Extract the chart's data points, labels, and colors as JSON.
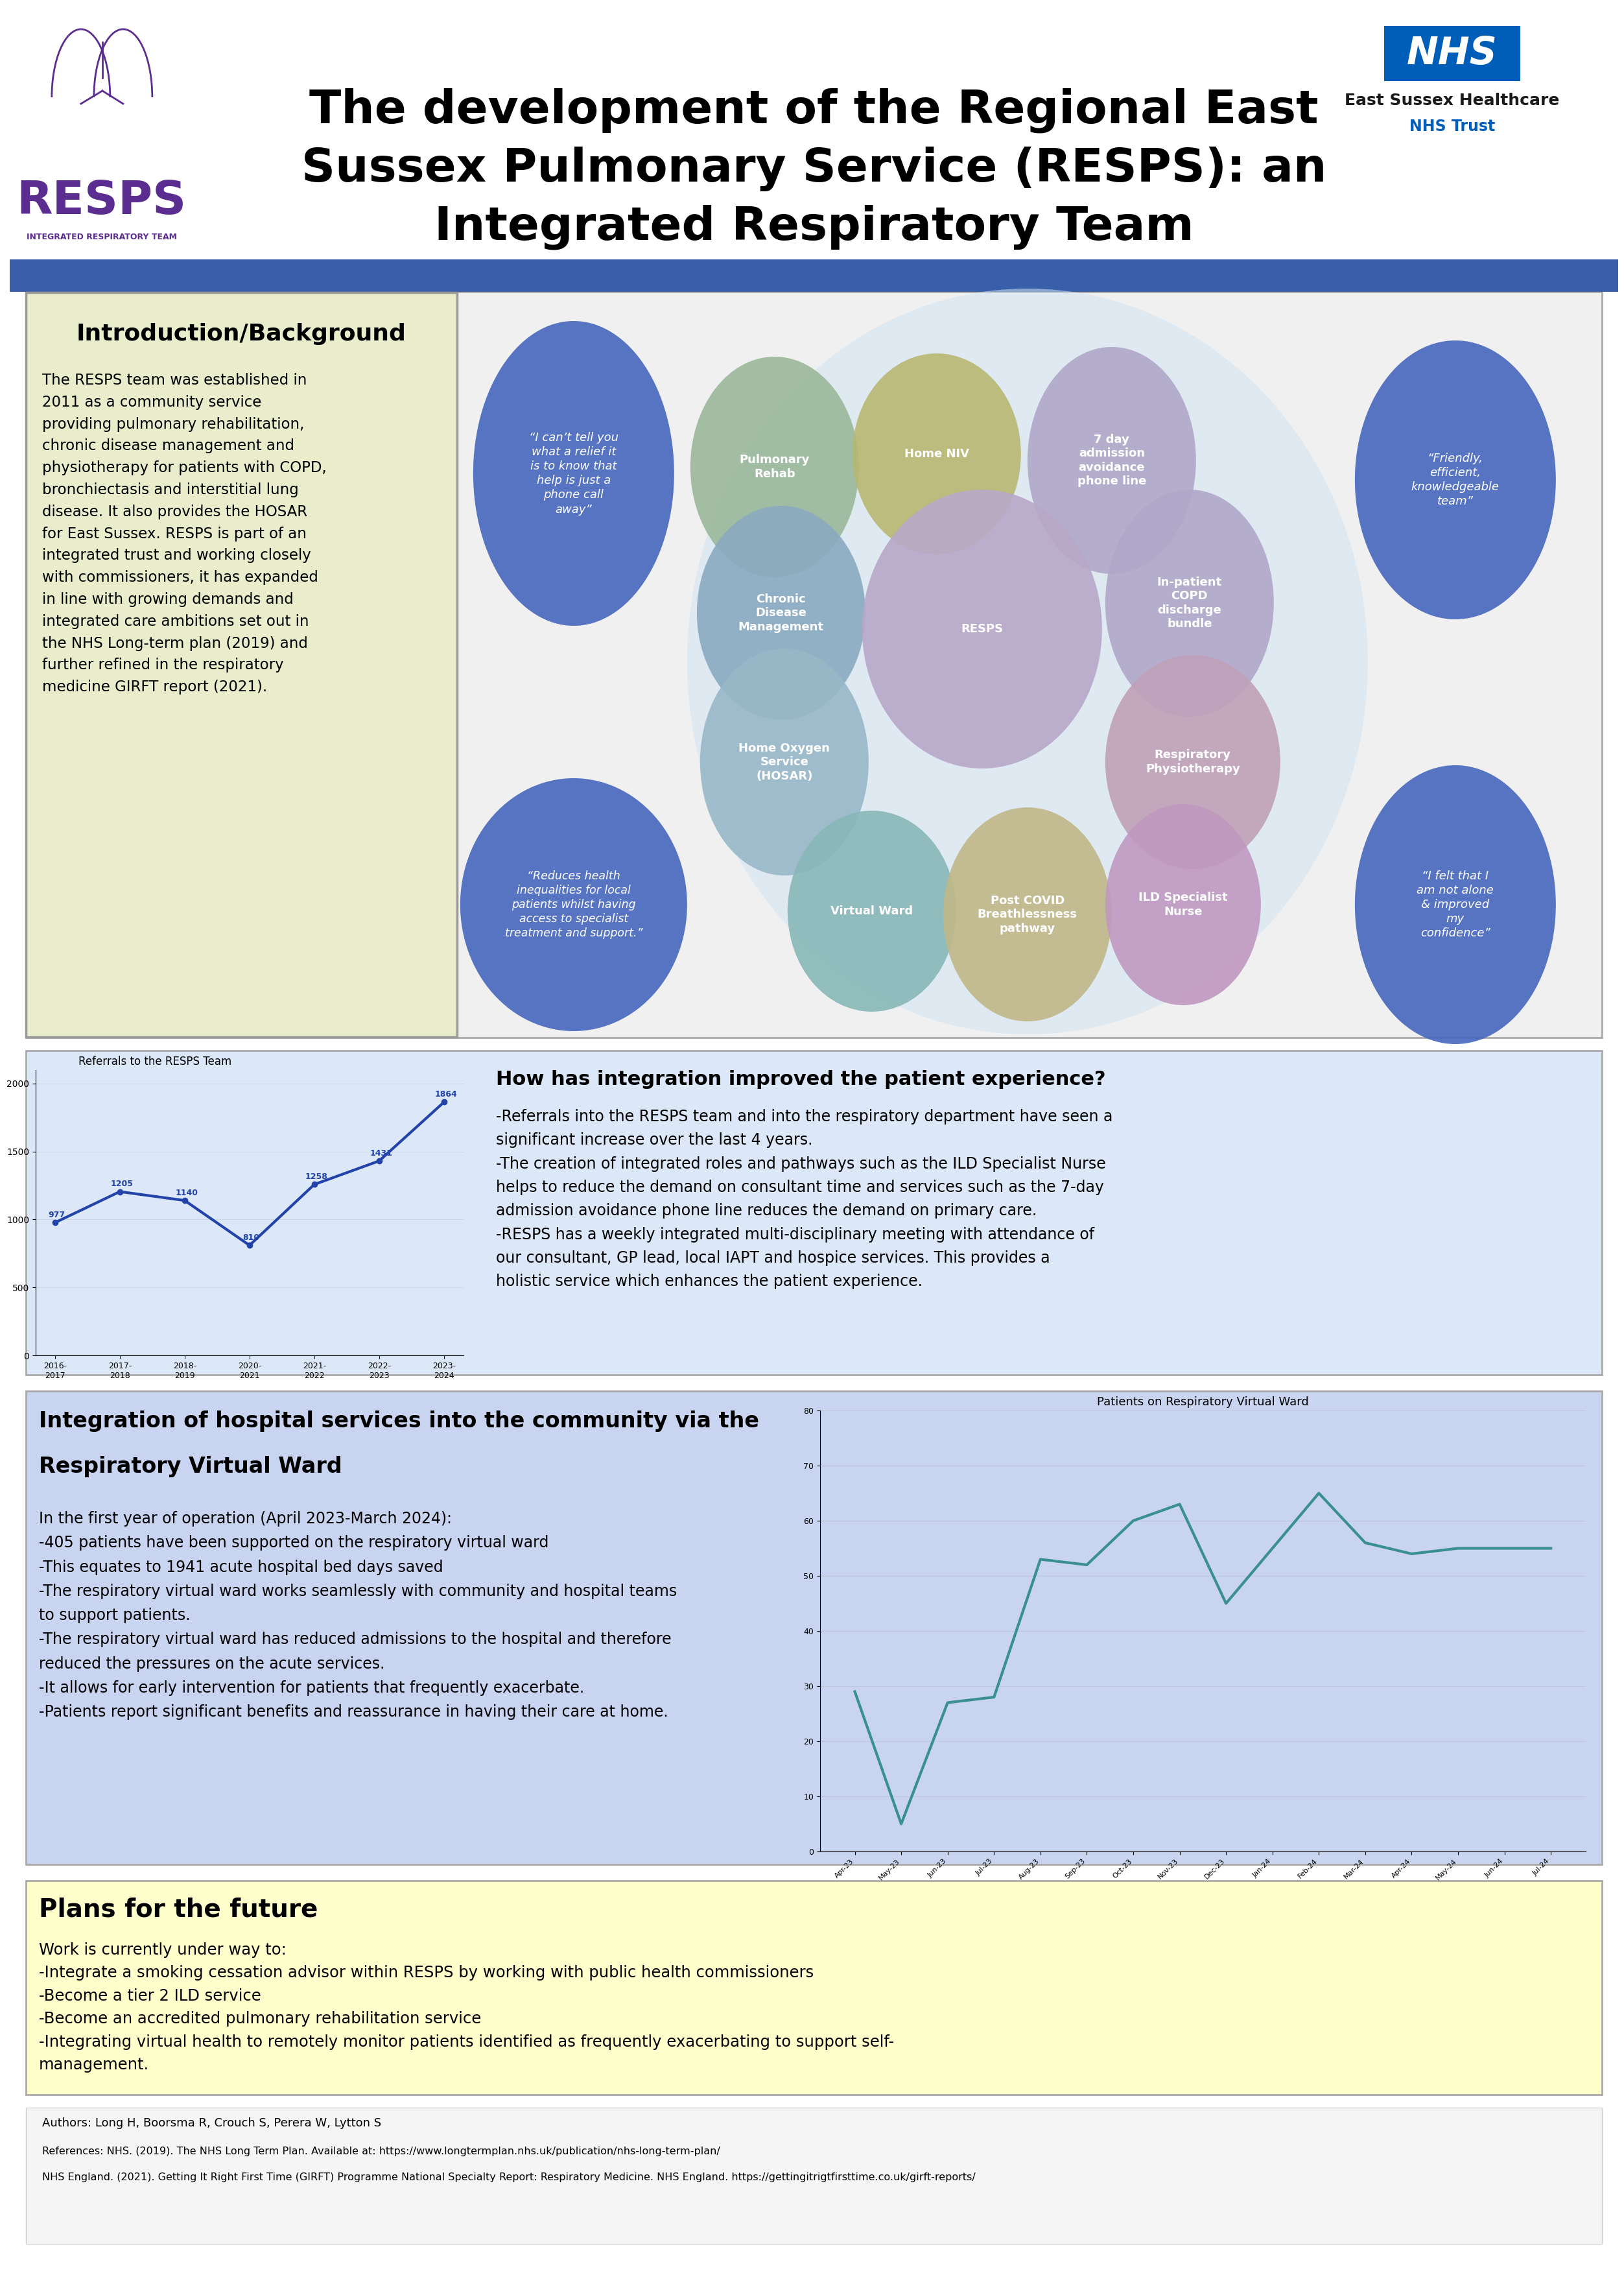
{
  "title_line1": "The development of the Regional East",
  "title_line2": "Sussex Pulmonary Service (RESPS): an",
  "title_line3": "Integrated Respiratory Team",
  "bg_color": "#ffffff",
  "blue_bar_color": "#3a5faa",
  "section1_bg": "#eaedcc",
  "section2_bg": "#dce8f8",
  "section3_bg": "#c8d4f0",
  "section4_bg": "#ffffcc",
  "intro_title": "Introduction/Background",
  "intro_body": "The RESPS team was established in\n2011 as a community service\nproviding pulmonary rehabilitation,\nchronic disease management and\nphysiotherapy for patients with COPD,\nbronchiectasis and interstitial lung\ndisease. It also provides the HOSAR\nfor East Sussex. RESPS is part of an\nintegrated trust and working closely\nwith commissioners, it has expanded\nin line with growing demands and\nintegrated care ambitions set out in\nthe NHS Long-term plan (2019) and\nfurther refined in the respiratory\nmedicine GIRFT report (2021).",
  "quote1": "“I can’t tell you\nwhat a relief it\nis to know that\nhelp is just a\nphone call\naway”",
  "quote2": "“Friendly,\nefficient,\nknowledgeable\nteam”",
  "quote3": "“Reduces health\ninequalities for local\npatients whilst having\naccess to specialist\ntreatment and support.”",
  "quote4": "“I felt that I\nam not alone\n& improved\nmy\nconfidence”",
  "integration_title": "How has integration improved the patient experience?",
  "integration_body": "-Referrals into the RESPS team and into the respiratory department have seen a\nsignificant increase over the last 4 years.\n-The creation of integrated roles and pathways such as the ILD Specialist Nurse\nhelps to reduce the demand on consultant time and services such as the 7-day\nadmission avoidance phone line reduces the demand on primary care.\n-RESPS has a weekly integrated multi-disciplinary meeting with attendance of\nour consultant, GP lead, local IAPT and hospice services. This provides a\nholistic service which enhances the patient experience.",
  "vw_title_bold": "Integration of hospital services into the community via the\nRespiratory Virtual Ward",
  "vw_body": "In the first year of operation (April 2023-March 2024):\n-405 patients have been supported on the respiratory virtual ward\n-This equates to 1941 acute hospital bed days saved\n-The respiratory virtual ward works seamlessly with community and hospital teams\nto support patients.\n-The respiratory virtual ward has reduced admissions to the hospital and therefore\nreduced the pressures on the acute services.\n-It allows for early intervention for patients that frequently exacerbate.\n-Patients report significant benefits and reassurance in having their care at home.",
  "vw_chart_title": "Patients on Respiratory Virtual Ward",
  "vw_months": [
    "Apr-23",
    "May-23",
    "Jun-23",
    "Jul-23",
    "Aug-23",
    "Sep-23",
    "Oct-23",
    "Nov-23",
    "Dec-23",
    "Jan-24",
    "Feb-24",
    "Mar-24",
    "Apr-24",
    "May-24",
    "Jun-24",
    "Jul-24"
  ],
  "vw_values": [
    29,
    5,
    27,
    28,
    53,
    52,
    60,
    63,
    45,
    55,
    65,
    56,
    54,
    55,
    55,
    55
  ],
  "future_title": "Plans for the future",
  "future_body": "Work is currently under way to:\n-Integrate a smoking cessation advisor within RESPS by working with public health commissioners\n-Become a tier 2 ILD service\n-Become an accredited pulmonary rehabilitation service\n-Integrating virtual health to remotely monitor patients identified as frequently exacerbating to support self-\nmanagement.",
  "authors": "Authors: Long H, Boorsma R, Crouch S, Perera W, Lytton S",
  "ref1": "References: NHS. (2019). The NHS Long Term Plan. Available at: https://www.longtermplan.nhs.uk/publication/nhs-long-term-plan/",
  "ref2": "NHS England. (2021). Getting It Right First Time (GIRFT) Programme National Specialty Report: Respiratory Medicine. NHS England. https://gettingitrigtfirsttime.co.uk/girft-reports/"
}
